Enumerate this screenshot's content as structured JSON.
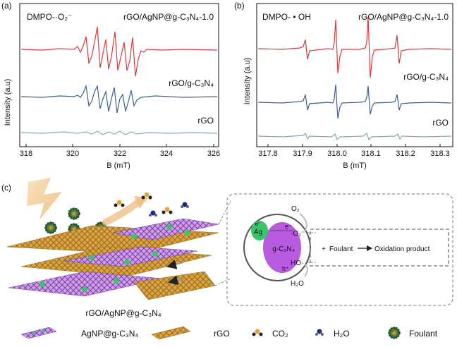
{
  "figure": {
    "panel_a": {
      "label": "(a)",
      "probe": "DMPO-·O₂⁻",
      "xlabel": "B (mT)",
      "ylabel": "Intensity (a.u)",
      "ticks": [
        "318",
        "320",
        "322",
        "324",
        "326"
      ],
      "series": [
        {
          "name": "rGO/AgNP@g-C₃N₄-1.0",
          "color": "#d93a3a"
        },
        {
          "name": "rGO/g-C₃N₄",
          "color": "#3f5f8c"
        },
        {
          "name": "rGO",
          "color": "#7faab3"
        }
      ]
    },
    "panel_b": {
      "label": "(b)",
      "probe": "DMPO- • OH",
      "xlabel": "B (mT)",
      "ylabel": "Intensity (a.u)",
      "ticks": [
        "317.8",
        "317.9",
        "318.0",
        "318.1",
        "318.2",
        "318.3"
      ],
      "series": [
        {
          "name": "rGO/AgNP@g-C₃N₄-1.0",
          "color": "#d93a3a"
        },
        {
          "name": "rGO/g-C₃N₄",
          "color": "#3f5f8c"
        },
        {
          "name": "rGO",
          "color": "#7faab3"
        }
      ]
    },
    "panel_c": {
      "label": "(c)",
      "composite_label": "rGO/AgNP@g-C₃N₄",
      "mechanism": {
        "ag": "Ag",
        "e_small": "e⁻",
        "e": "e⁻",
        "h": "h⁺",
        "gcn": "g-C₃N₄",
        "o2": "O₂",
        "superoxide": "·O₂⁻",
        "hydroxyl": "HO·",
        "h2o": "H₂O",
        "reaction_plus": "+",
        "reaction_foulant": "Foulant",
        "reaction_product": "Oxidation product"
      }
    },
    "legend": [
      {
        "label": "AgNP@g-C₃N₄"
      },
      {
        "label": "rGO"
      },
      {
        "label": "CO₂"
      },
      {
        "label": "H₂O"
      },
      {
        "label": "Foulant"
      }
    ]
  }
}
